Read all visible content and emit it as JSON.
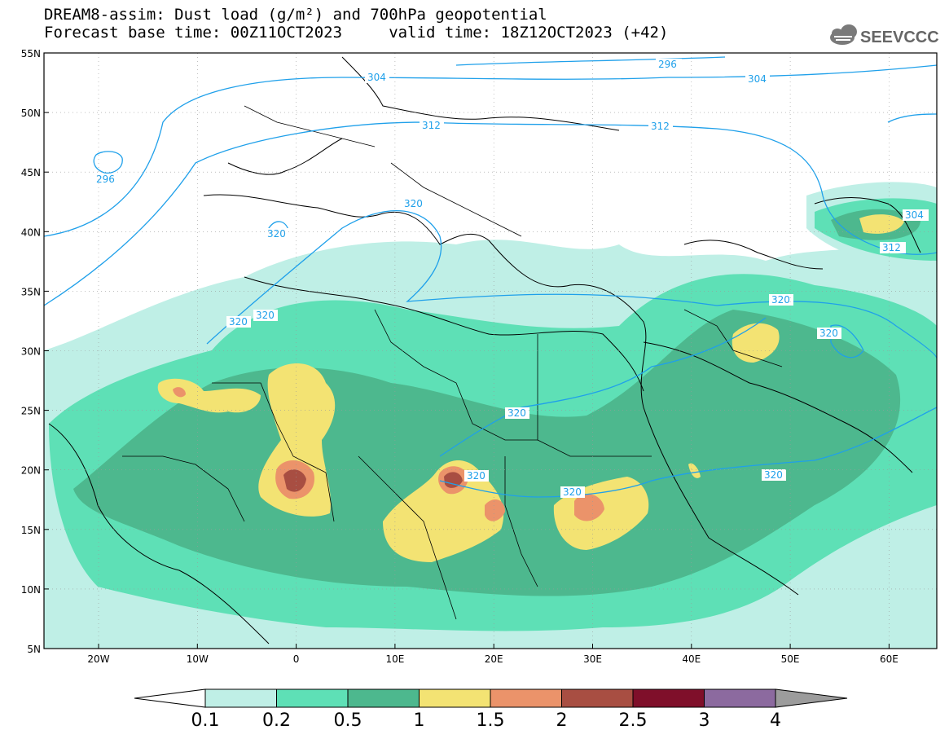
{
  "header": {
    "title_line1": "DREAM8-assim: Dust load (g/m²) and 700hPa geopotential",
    "title_line2": "Forecast base time: 00Z11OCT2023     valid time: 18Z12OCT2023 (+42)",
    "logo_text": "SEEVCCC"
  },
  "colors": {
    "c01": "#bfefe6",
    "c02": "#5ee0b6",
    "c05": "#4db88e",
    "c1": "#f3e373",
    "c15": "#eb936a",
    "c2": "#a84e42",
    "c25": "#7f0f2a",
    "c3": "#8c6a9f",
    "c4": "#9c9c9c",
    "contour": "#1fa0ea"
  },
  "axes": {
    "lat_labels": [
      "55N",
      "50N",
      "45N",
      "40N",
      "35N",
      "30N",
      "25N",
      "20N",
      "15N",
      "10N",
      "5N"
    ],
    "lon_labels": [
      "20W",
      "10W",
      "0",
      "10E",
      "20E",
      "30E",
      "40E",
      "50E",
      "60E"
    ]
  },
  "contour_labels": [
    "296",
    "304",
    "296",
    "312",
    "304",
    "312",
    "320",
    "320",
    "320",
    "320",
    "304",
    "312",
    "320",
    "320",
    "320",
    "320",
    "320",
    "320"
  ],
  "colorbar": {
    "ticks": [
      "0.1",
      "0.2",
      "0.5",
      "1",
      "1.5",
      "2",
      "2.5",
      "3",
      "4"
    ]
  }
}
